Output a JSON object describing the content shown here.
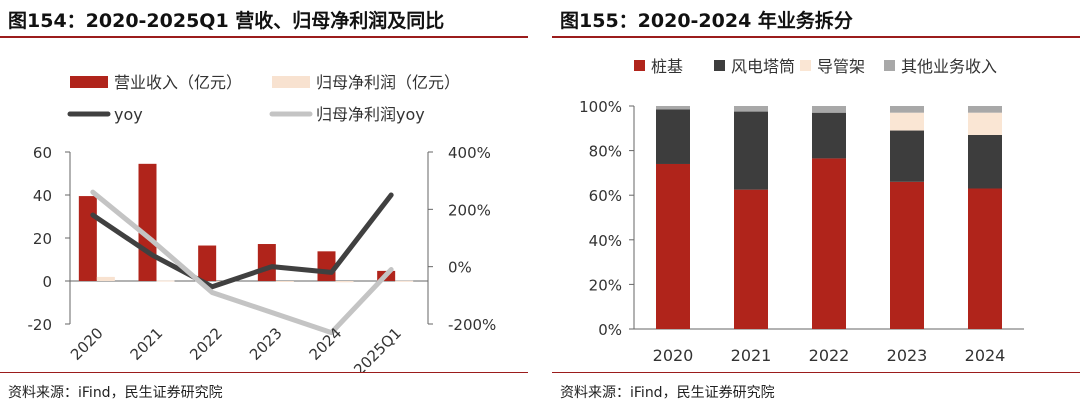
{
  "left_panel": {
    "title": "图154：2020-2025Q1 营收、归母净利润及同比",
    "source": "资料来源：iFind，民生证券研究院"
  },
  "right_panel": {
    "title": "图155：2020-2024 年业务拆分",
    "source": "资料来源：iFind，民生证券研究院"
  },
  "colors": {
    "revenue": "#b0241b",
    "net_profit": "#f8e2d0",
    "yoy": "#404040",
    "np_yoy": "#c4c4c4",
    "pile": "#b0241b",
    "tower": "#3d3d3d",
    "pipe": "#fae6d4",
    "other": "#a8a8a8",
    "rule": "#9b1c1c"
  },
  "chart_data": [
    {
      "type": "bar",
      "categories": [
        "2020",
        "2021",
        "2022",
        "2023",
        "2024",
        "2025Q1"
      ],
      "series": [
        {
          "name": "营业收入（亿元）",
          "type": "bar",
          "axis": "left",
          "values": [
            39.5,
            54.5,
            16.5,
            17.2,
            13.8,
            4.7
          ]
        },
        {
          "name": "归母净利润（亿元）",
          "type": "bar",
          "axis": "left",
          "values": [
            1.9,
            0.2,
            -0.4,
            -0.2,
            -0.6,
            0.1
          ]
        },
        {
          "name": "yoy",
          "type": "line",
          "axis": "right",
          "values": [
            180,
            40,
            -70,
            0,
            -20,
            250
          ]
        },
        {
          "name": "归母净利润yoy",
          "type": "line",
          "axis": "right",
          "values": [
            260,
            90,
            -90,
            -160,
            -230,
            -10
          ]
        }
      ],
      "left_axis": {
        "ticks": [
          "60",
          "40",
          "20",
          "0",
          "-20"
        ],
        "ylim": [
          -20,
          60
        ]
      },
      "right_axis": {
        "ticks": [
          "400%",
          "200%",
          "0%",
          "-200%"
        ],
        "ylim": [
          -200,
          400
        ]
      },
      "grid": false,
      "legend": "top"
    },
    {
      "type": "bar",
      "stacked": true,
      "categories": [
        "2020",
        "2021",
        "2022",
        "2023",
        "2024"
      ],
      "series": [
        {
          "name": "桩基",
          "values": [
            74,
            62.5,
            76.5,
            66,
            63
          ]
        },
        {
          "name": "风电塔筒",
          "values": [
            24.5,
            35,
            20.5,
            23,
            24
          ]
        },
        {
          "name": "导管架",
          "values": [
            0,
            0,
            0,
            8,
            10
          ]
        },
        {
          "name": "其他业务收入",
          "values": [
            1.5,
            2.5,
            3,
            3,
            3
          ]
        }
      ],
      "y_ticks": [
        "100%",
        "80%",
        "60%",
        "40%",
        "20%",
        "0%"
      ],
      "ylim": [
        0,
        100
      ],
      "grid": false,
      "legend": "top"
    }
  ]
}
